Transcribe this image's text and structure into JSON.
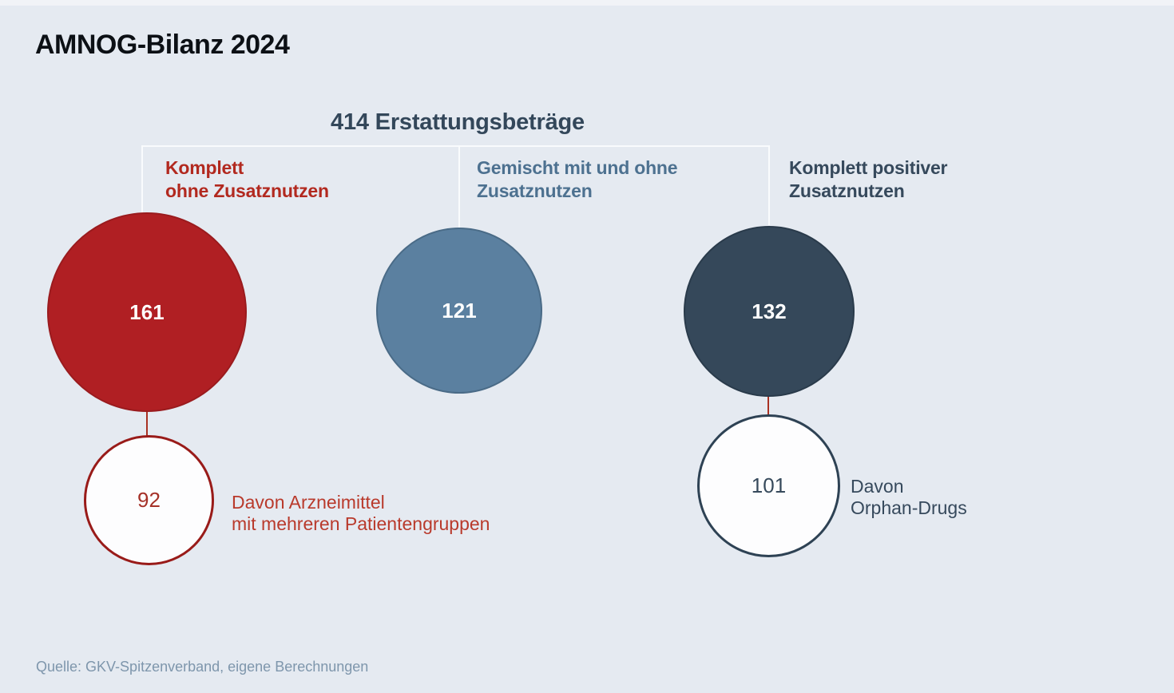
{
  "chart_data": {
    "type": "bubble",
    "title": "AMNOG-Bilanz 2024",
    "heading": "414 Erstattungsbeträge",
    "total": 414,
    "categories": [
      {
        "label": "Komplett ohne Zusatznutzen",
        "label_lines": [
          "Komplett",
          "ohne Zusatznutzen"
        ],
        "value": 161,
        "color": "#b01f23",
        "label_color": "#b2291f",
        "sub": {
          "label": "Davon Arzneimittel mit mehreren Patientengruppen",
          "label_lines": [
            "Davon Arzneimittel",
            "mit mehreren Patientengruppen"
          ],
          "value": 92,
          "border_color": "#991b19",
          "text_color": "#a53128"
        }
      },
      {
        "label": "Gemischt mit und ohne Zusatznutzen",
        "label_lines": [
          "Gemischt mit und ohne",
          "Zusatznutzen"
        ],
        "value": 121,
        "color": "#5b80a0",
        "label_color": "#4d7190",
        "sub": null
      },
      {
        "label": "Komplett positiver Zusatznutzen",
        "label_lines": [
          "Komplett positiver",
          "Zusatznutzen"
        ],
        "value": 132,
        "color": "#35485a",
        "label_color": "#36495c",
        "sub": {
          "label": "Davon Orphan-Drugs",
          "label_lines": [
            "Davon",
            "Orphan-Drugs"
          ],
          "value": 101,
          "border_color": "#2e4254",
          "text_color": "#374a5c"
        }
      }
    ],
    "source": "Quelle: GKV-Spitzenverband, eigene Berechnungen",
    "layout": {
      "background": "#e5eaf1",
      "bracket_color": "#f9fbfd",
      "connector_color": "#a93123",
      "bubble_value_text_color": "#ffffff",
      "legend_position": "above-bubbles",
      "grid": false
    }
  }
}
